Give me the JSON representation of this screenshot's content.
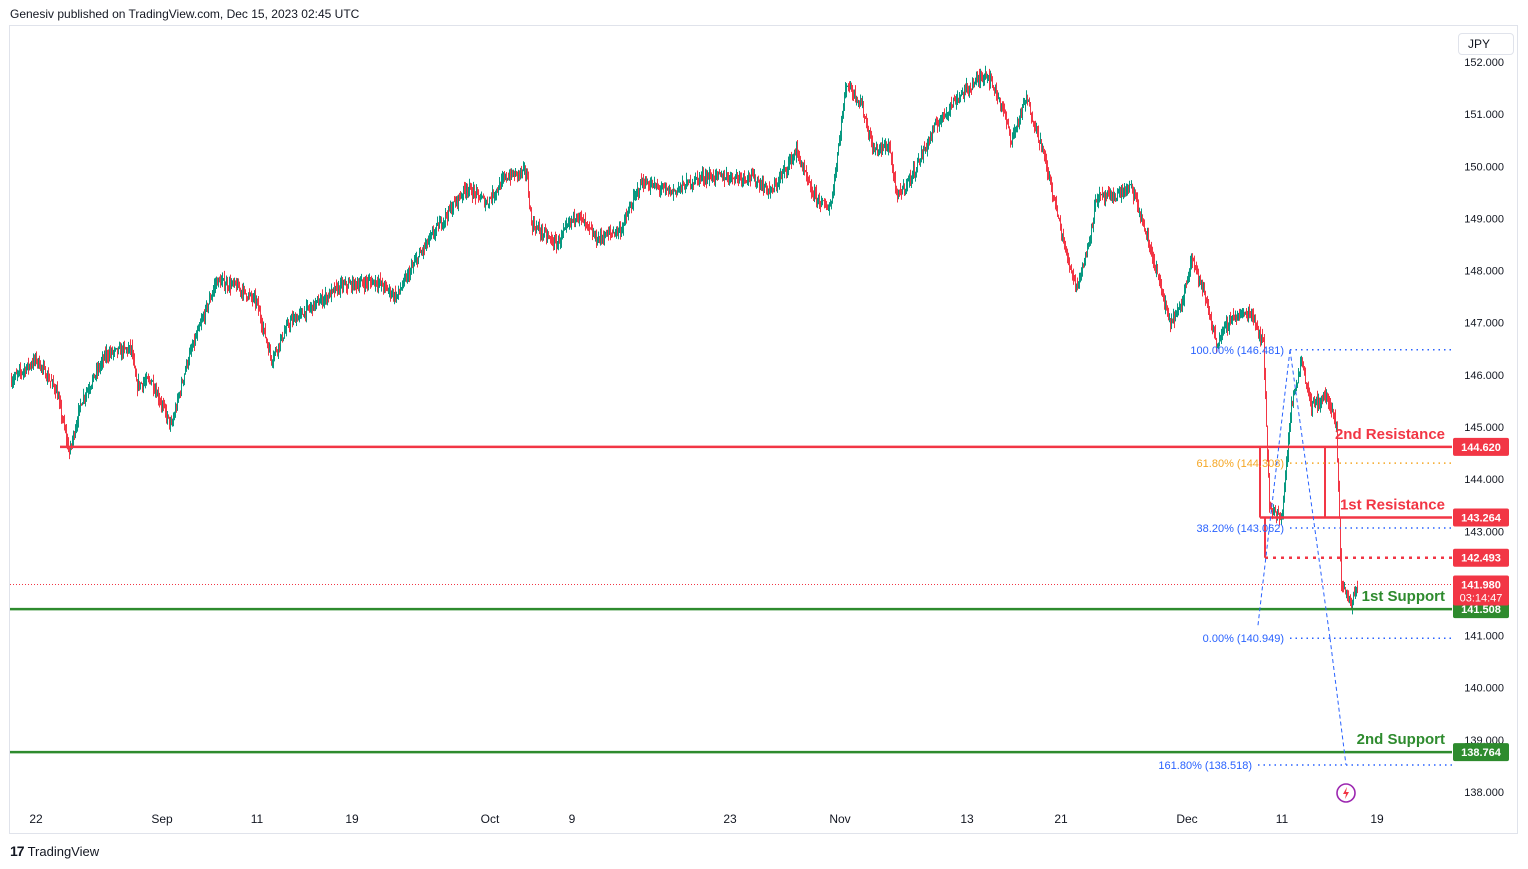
{
  "header": {
    "published": "Genesiv published on TradingView.com, Dec 15, 2023 02:45 UTC"
  },
  "currency_button": "JPY",
  "footer": {
    "brand": "TradingView",
    "logo_icon": "tradingview-logo-icon"
  },
  "colors": {
    "up": "#089981",
    "down": "#f23645",
    "resistance": "#f23645",
    "support": "#2e8b2e",
    "fib": "#2962ff",
    "fib_618": "#f5a623",
    "axis_text": "#131722"
  },
  "chart_data": {
    "type": "candlestick",
    "symbol_currency": "JPY",
    "ylim": [
      137.55,
      152.25
    ],
    "y_ticks": [
      "138.000",
      "139.000",
      "140.000",
      "141.000",
      "142.000",
      "143.000",
      "144.000",
      "145.000",
      "146.000",
      "147.000",
      "148.000",
      "149.000",
      "150.000",
      "151.000",
      "152.000"
    ],
    "x_ticks": [
      "22",
      "Sep",
      "11",
      "19",
      "Oct",
      "9",
      "23",
      "Nov",
      "13",
      "21",
      "Dec",
      "11",
      "19"
    ],
    "anchors": [
      [
        0,
        145.9
      ],
      [
        25,
        146.3
      ],
      [
        45,
        145.7
      ],
      [
        58,
        144.5
      ],
      [
        70,
        145.5
      ],
      [
        95,
        146.4
      ],
      [
        120,
        146.5
      ],
      [
        125,
        145.8
      ],
      [
        140,
        145.9
      ],
      [
        160,
        145.0
      ],
      [
        175,
        146.2
      ],
      [
        205,
        147.8
      ],
      [
        225,
        147.7
      ],
      [
        245,
        147.4
      ],
      [
        260,
        146.3
      ],
      [
        278,
        147.0
      ],
      [
        300,
        147.3
      ],
      [
        330,
        147.7
      ],
      [
        365,
        147.8
      ],
      [
        385,
        147.5
      ],
      [
        405,
        148.2
      ],
      [
        425,
        148.8
      ],
      [
        455,
        149.6
      ],
      [
        475,
        149.3
      ],
      [
        495,
        149.8
      ],
      [
        515,
        149.9
      ],
      [
        520,
        148.9
      ],
      [
        545,
        148.5
      ],
      [
        565,
        149.1
      ],
      [
        585,
        148.6
      ],
      [
        610,
        148.8
      ],
      [
        630,
        149.7
      ],
      [
        660,
        149.5
      ],
      [
        690,
        149.8
      ],
      [
        740,
        149.8
      ],
      [
        760,
        149.5
      ],
      [
        785,
        150.3
      ],
      [
        800,
        149.5
      ],
      [
        815,
        149.2
      ],
      [
        820,
        149.3
      ],
      [
        835,
        151.6
      ],
      [
        850,
        151.2
      ],
      [
        862,
        150.3
      ],
      [
        878,
        150.4
      ],
      [
        885,
        149.4
      ],
      [
        900,
        149.8
      ],
      [
        925,
        150.8
      ],
      [
        945,
        151.3
      ],
      [
        975,
        151.8
      ],
      [
        990,
        151.2
      ],
      [
        1000,
        150.5
      ],
      [
        1015,
        151.3
      ],
      [
        1030,
        150.4
      ],
      [
        1040,
        149.6
      ],
      [
        1055,
        148.3
      ],
      [
        1065,
        147.7
      ],
      [
        1075,
        148.3
      ],
      [
        1085,
        149.4
      ],
      [
        1100,
        149.4
      ],
      [
        1120,
        149.6
      ],
      [
        1130,
        149.0
      ],
      [
        1145,
        148.0
      ],
      [
        1158,
        147.0
      ],
      [
        1170,
        147.3
      ],
      [
        1180,
        148.3
      ],
      [
        1195,
        147.4
      ],
      [
        1205,
        146.6
      ],
      [
        1220,
        147.1
      ],
      [
        1240,
        147.2
      ],
      [
        1252,
        146.6
      ],
      [
        1258,
        143.5
      ],
      [
        1270,
        143.2
      ],
      [
        1280,
        145.4
      ],
      [
        1290,
        146.3
      ],
      [
        1300,
        145.4
      ],
      [
        1315,
        145.6
      ],
      [
        1325,
        145.0
      ],
      [
        1330,
        142.0
      ],
      [
        1340,
        141.6
      ],
      [
        1346,
        142.0
      ]
    ],
    "horizontal_levels": [
      {
        "label": "2nd Resistance",
        "value": 144.62,
        "tag": "144.620",
        "color": "#f23645"
      },
      {
        "label": "1st Resistance",
        "value": 143.264,
        "tag": "143.264",
        "color": "#f23645"
      },
      {
        "label": "",
        "value": 142.493,
        "tag": "142.493",
        "color": "#f23645",
        "style": "dotted"
      },
      {
        "label": "1st Support",
        "value": 141.508,
        "tag": "141.508",
        "color": "#2e8b2e"
      },
      {
        "label": "2nd Support",
        "value": 138.764,
        "tag": "138.764",
        "color": "#2e8b2e"
      }
    ],
    "current_price": {
      "value": 141.98,
      "tag": "141.980",
      "countdown": "03:14:47"
    },
    "fibonacci": [
      {
        "label": "100.00% (146.481)",
        "value": 146.481,
        "color": "#2962ff"
      },
      {
        "label": "61.80% (144.308)",
        "value": 144.308,
        "color": "#f5a623"
      },
      {
        "label": "38.20% (143.062)",
        "value": 143.062,
        "color": "#2962ff"
      },
      {
        "label": "0.00% (140.949)",
        "value": 140.949,
        "color": "#2962ff"
      },
      {
        "label": "161.80% (138.518)",
        "value": 138.518,
        "color": "#2962ff"
      }
    ]
  }
}
